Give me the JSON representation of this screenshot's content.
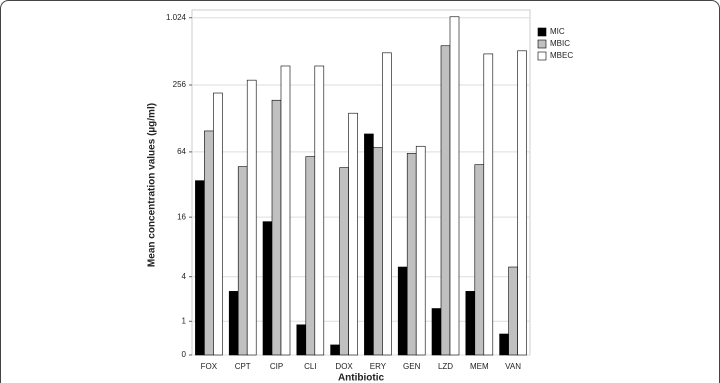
{
  "chart_data": {
    "type": "bar",
    "ylabel": "Mean concentration values (µg/ml)",
    "xlabel": "Antibiotic",
    "yscale": "log2(x+1)",
    "categories": [
      "FOX",
      "CPT",
      "CIP",
      "CLI",
      "DOX",
      "ERY",
      "GEN",
      "LZD",
      "MEM",
      "VAN"
    ],
    "series": [
      {
        "name": "MIC",
        "color": "#000000",
        "values": [
          35,
          2.7,
          14.5,
          0.86,
          0.23,
          93,
          5.1,
          1.6,
          2.7,
          0.54
        ]
      },
      {
        "name": "MBIC",
        "color": "#c0c0c0",
        "values": [
          99,
          47,
          187,
          58,
          46,
          70,
          62,
          575,
          49,
          5.1
        ]
      },
      {
        "name": "MBEC",
        "color": "#ffffff",
        "values": [
          217,
          283,
          379,
          379,
          143,
          497,
          72,
          1044,
          486,
          518
        ]
      }
    ],
    "ylim": [
      0,
      1200
    ],
    "yticks": [
      0,
      1,
      4,
      16,
      64,
      256,
      {
        "value": 1024,
        "label": "1.024"
      }
    ],
    "grid": true,
    "legend": "top-right"
  }
}
